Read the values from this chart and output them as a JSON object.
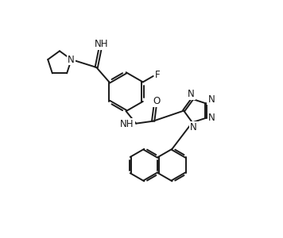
{
  "background_color": "#ffffff",
  "line_color": "#1a1a1a",
  "line_width": 1.4,
  "font_size": 8.5,
  "figsize": [
    3.56,
    3.0
  ],
  "dpi": 100,
  "xlim": [
    0,
    10
  ],
  "ylim": [
    0,
    10
  ]
}
